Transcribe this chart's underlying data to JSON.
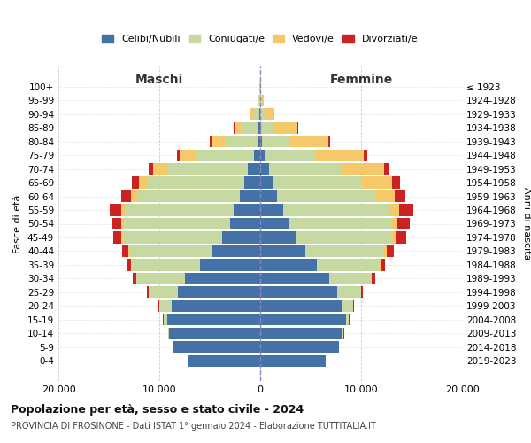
{
  "age_groups": [
    "0-4",
    "5-9",
    "10-14",
    "15-19",
    "20-24",
    "25-29",
    "30-34",
    "35-39",
    "40-44",
    "45-49",
    "50-54",
    "55-59",
    "60-64",
    "65-69",
    "70-74",
    "75-79",
    "80-84",
    "85-89",
    "90-94",
    "95-99",
    "100+"
  ],
  "birth_years": [
    "2019-2023",
    "2014-2018",
    "2009-2013",
    "2004-2008",
    "1999-2003",
    "1994-1998",
    "1989-1993",
    "1984-1988",
    "1979-1983",
    "1974-1978",
    "1969-1973",
    "1964-1968",
    "1959-1963",
    "1954-1958",
    "1949-1953",
    "1944-1948",
    "1939-1943",
    "1934-1938",
    "1929-1933",
    "1924-1928",
    "≤ 1923"
  ],
  "males": {
    "celibe": [
      7200,
      8600,
      9000,
      9200,
      8800,
      8200,
      7500,
      6000,
      4800,
      3800,
      3000,
      2600,
      2000,
      1600,
      1200,
      600,
      250,
      150,
      80,
      40,
      15
    ],
    "coniugato": [
      5,
      20,
      100,
      400,
      1200,
      2800,
      4800,
      6800,
      8200,
      9800,
      10500,
      10800,
      10200,
      9500,
      8000,
      5800,
      3200,
      1600,
      600,
      150,
      30
    ],
    "vedovo": [
      0,
      0,
      1,
      2,
      5,
      10,
      20,
      40,
      80,
      150,
      250,
      380,
      600,
      900,
      1400,
      1600,
      1400,
      800,
      280,
      60,
      10
    ],
    "divorziato": [
      2,
      5,
      10,
      30,
      80,
      180,
      280,
      440,
      620,
      820,
      1000,
      1100,
      1000,
      700,
      450,
      250,
      120,
      60,
      25,
      10,
      2
    ]
  },
  "females": {
    "nubile": [
      6500,
      7800,
      8200,
      8500,
      8200,
      7600,
      6800,
      5600,
      4500,
      3600,
      2800,
      2300,
      1700,
      1300,
      900,
      500,
      180,
      80,
      30,
      15,
      5
    ],
    "coniugata": [
      5,
      15,
      80,
      300,
      1000,
      2400,
      4200,
      6200,
      7800,
      9500,
      10200,
      10500,
      9800,
      8800,
      7200,
      5000,
      2600,
      1200,
      450,
      120,
      20
    ],
    "vedova": [
      0,
      0,
      2,
      5,
      10,
      20,
      50,
      100,
      200,
      380,
      620,
      1000,
      1800,
      3000,
      4200,
      4800,
      4000,
      2400,
      900,
      220,
      40
    ],
    "divorziata": [
      2,
      5,
      10,
      30,
      80,
      180,
      320,
      500,
      730,
      950,
      1200,
      1350,
      1100,
      800,
      550,
      300,
      140,
      65,
      25,
      10,
      2
    ]
  },
  "colors": {
    "celibe_nubile": "#4472a8",
    "coniugato": "#c5d9a0",
    "vedovo": "#f5c96a",
    "divorziato": "#cc2222"
  },
  "xlim": 20000,
  "xticks": [
    -20000,
    -10000,
    0,
    10000,
    20000
  ],
  "xticklabels": [
    "20.000",
    "10.000",
    "0",
    "10.000",
    "20.000"
  ],
  "title": "Popolazione per età, sesso e stato civile - 2024",
  "subtitle": "PROVINCIA DI FROSINONE - Dati ISTAT 1° gennaio 2024 - Elaborazione TUTTITALIA.IT",
  "ylabel_left": "Fasce di età",
  "ylabel_right": "Anni di nascita",
  "label_maschi": "Maschi",
  "label_femmine": "Femmine",
  "legend_labels": [
    "Celibi/Nubili",
    "Coniugati/e",
    "Vedovi/e",
    "Divorziati/e"
  ],
  "background_color": "#ffffff"
}
